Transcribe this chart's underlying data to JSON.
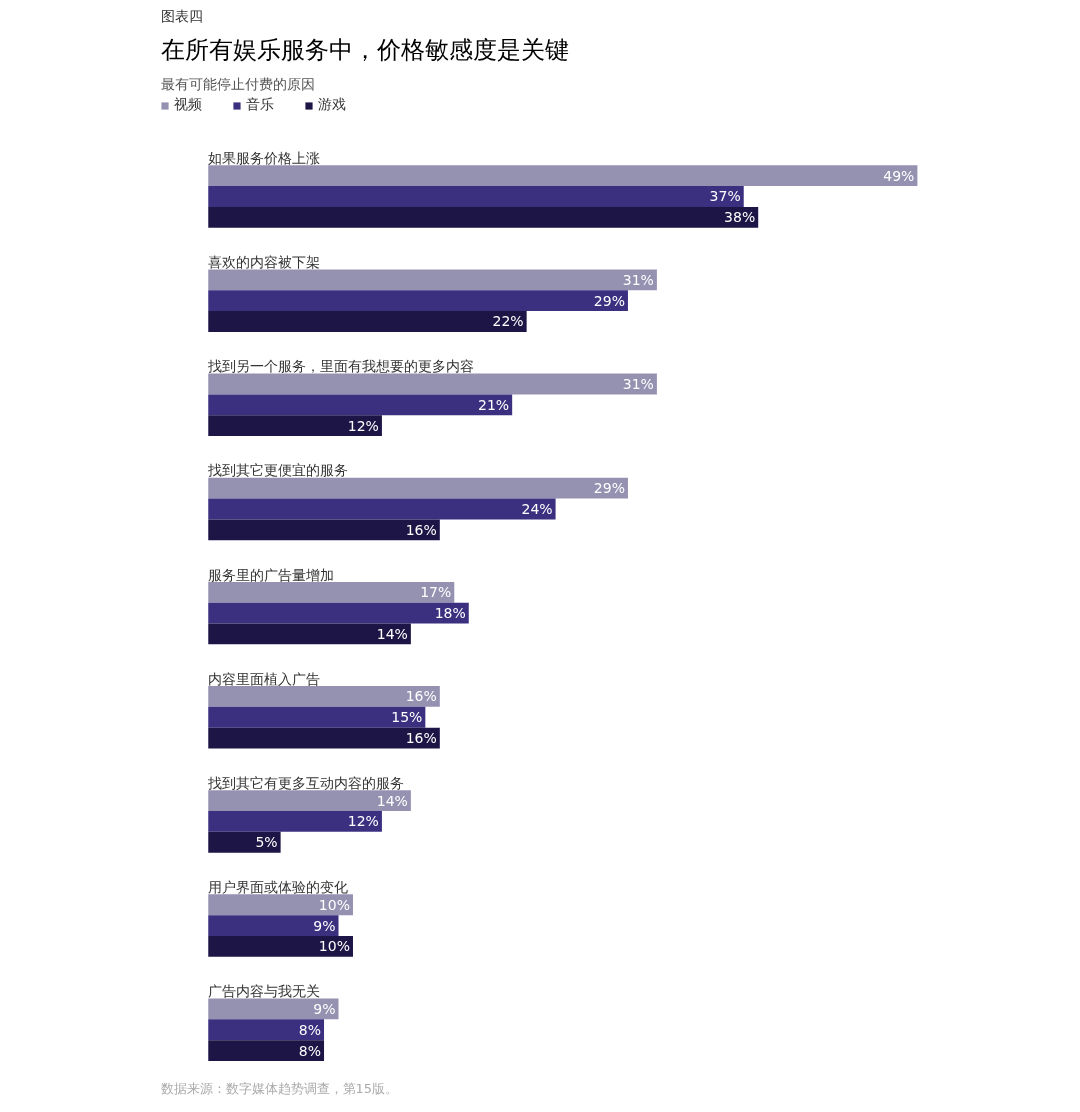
{
  "chart_data": {
    "type": "bar",
    "orientation": "horizontal",
    "title": "在所有娱乐服务中，价格敏感度是关键",
    "subtitle": "最有可能停止付费的原因",
    "annotations": [
      "图表四",
      "数据来源：数字媒体趋势调查，第15版。"
    ],
    "categories": [
      "如果服务价格上涨",
      "喜欢的内容被下架",
      "找到另一个服务，里面有我想要的更多内容",
      "找到其它更便宜的服务",
      "服务里的广告量增加",
      "内容里面植入广告",
      "找到其它有更多互动内容的服务",
      "用户界面或体验的变化",
      "广告内容与我无关"
    ],
    "series": [
      {
        "name": "视频",
        "color": "#9591b1",
        "values": [
          49,
          31,
          31,
          29,
          17,
          16,
          14,
          10,
          9
        ],
        "value_labels": [
          "49%",
          "31%",
          "31%",
          "29%",
          "17%",
          "16%",
          "14%",
          "10%",
          "9%"
        ]
      },
      {
        "name": "音乐",
        "color": "#3b2f80",
        "values": [
          37,
          29,
          21,
          24,
          18,
          15,
          12,
          9,
          8
        ],
        "value_labels": [
          "37%",
          "29%",
          "21%",
          "24%",
          "18%",
          "15%",
          "12%",
          "9%",
          "8%"
        ]
      },
      {
        "name": "游戏",
        "color": "#1c1545",
        "values": [
          38,
          22,
          12,
          16,
          14,
          16,
          5,
          10,
          8
        ],
        "value_labels": [
          "38%",
          "22%",
          "12%",
          "16%",
          "14%",
          "16%",
          "5%",
          "10%",
          "8%"
        ]
      }
    ],
    "grid": false,
    "legend": "top left",
    "tick_labels": false
  }
}
